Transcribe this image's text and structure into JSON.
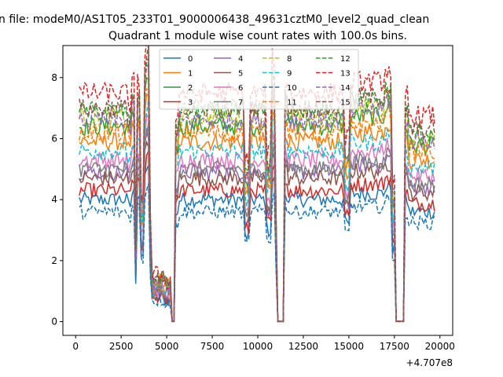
{
  "suptitle": "n file: modeM0/AS1T05_233T01_9000006438_49631cztM0_level2_quad_clean",
  "chart_data": {
    "type": "line",
    "title": "Quadrant 1 module wise count rates with 100.0s bins.",
    "xlabel": "",
    "ylabel": "",
    "offset_text": "+4.707e8",
    "xlim": [
      -700,
      20700
    ],
    "ylim": [
      -0.45,
      9.05
    ],
    "x_ticks": [
      0,
      2500,
      5000,
      7500,
      10000,
      12500,
      15000,
      17500,
      20000
    ],
    "y_ticks": [
      0,
      2,
      4,
      6,
      8
    ],
    "legend": {
      "placement": "top-center",
      "ncol": 4
    },
    "x_start": 200,
    "x_step": 100,
    "x_end": 19700,
    "profile": {
      "note": "normalized shape shared by all modules: segments [x_from, x_to, factor]",
      "segments": [
        [
          200,
          2900,
          1.0
        ],
        [
          2900,
          3100,
          0.95
        ],
        [
          3100,
          3300,
          1.05
        ],
        [
          3300,
          3350,
          0.35
        ],
        [
          3350,
          3600,
          1.05
        ],
        [
          3600,
          3750,
          0.55
        ],
        [
          3750,
          3900,
          1.15
        ],
        [
          3900,
          4050,
          1.25
        ],
        [
          4050,
          4200,
          0.45
        ],
        [
          4200,
          4900,
          0.2
        ],
        [
          4900,
          5300,
          0.18
        ],
        [
          5300,
          5500,
          0.0
        ],
        [
          5500,
          5700,
          0.9
        ],
        [
          5700,
          9300,
          1.0
        ],
        [
          9300,
          9550,
          0.7
        ],
        [
          9550,
          10500,
          1.0
        ],
        [
          10500,
          10800,
          0.75
        ],
        [
          10800,
          10950,
          1.15
        ],
        [
          10950,
          11050,
          0.5
        ],
        [
          11050,
          11500,
          0.0
        ],
        [
          11500,
          11700,
          1.05
        ],
        [
          11700,
          14800,
          1.0
        ],
        [
          14800,
          15100,
          0.8
        ],
        [
          15100,
          17000,
          1.05
        ],
        [
          17000,
          17400,
          1.1
        ],
        [
          17400,
          17600,
          0.6
        ],
        [
          17600,
          18100,
          0.0
        ],
        [
          18100,
          18300,
          1.0
        ],
        [
          18300,
          19700,
          0.9
        ]
      ]
    },
    "series": [
      {
        "name": "0",
        "color": "#1f77b4",
        "dash": false,
        "level": 4.0
      },
      {
        "name": "1",
        "color": "#ff7f0e",
        "dash": false,
        "level": 5.9
      },
      {
        "name": "2",
        "color": "#2ca02c",
        "dash": false,
        "level": 6.4
      },
      {
        "name": "3",
        "color": "#d62728",
        "dash": false,
        "level": 4.3
      },
      {
        "name": "4",
        "color": "#9467bd",
        "dash": false,
        "level": 4.9
      },
      {
        "name": "5",
        "color": "#8c564b",
        "dash": false,
        "level": 4.7
      },
      {
        "name": "6",
        "color": "#e377c2",
        "dash": false,
        "level": 5.3
      },
      {
        "name": "7",
        "color": "#7f7f7f",
        "dash": false,
        "level": 5.0
      },
      {
        "name": "8",
        "color": "#bcbd22",
        "dash": true,
        "level": 6.7
      },
      {
        "name": "9",
        "color": "#17becf",
        "dash": true,
        "level": 5.6
      },
      {
        "name": "10",
        "color": "#1f77b4",
        "dash": true,
        "level": 3.6
      },
      {
        "name": "11",
        "color": "#ff7f0e",
        "dash": true,
        "level": 6.2
      },
      {
        "name": "12",
        "color": "#2ca02c",
        "dash": true,
        "level": 6.9
      },
      {
        "name": "13",
        "color": "#d62728",
        "dash": true,
        "level": 7.5
      },
      {
        "name": "14",
        "color": "#9467bd",
        "dash": true,
        "level": 6.6
      },
      {
        "name": "15",
        "color": "#8c564b",
        "dash": true,
        "level": 7.0
      }
    ]
  }
}
